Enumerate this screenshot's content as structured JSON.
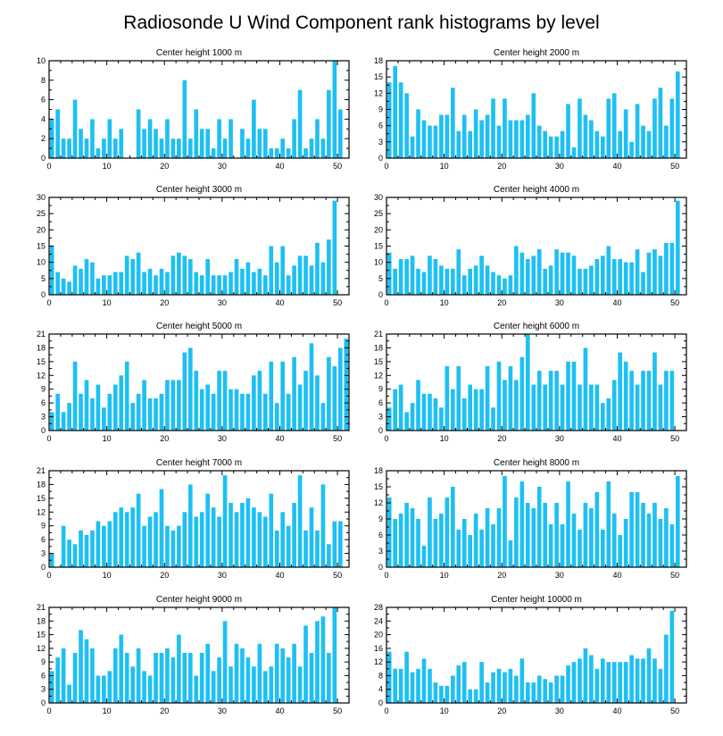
{
  "figure_title": "Radiosonde U Wind Component rank histograms by level",
  "colors": {
    "bar": "#1ec0f2",
    "axis": "#000000",
    "background": "#ffffff"
  },
  "chart_data": [
    {
      "type": "bar",
      "title": "Center height 1000 m",
      "xlim": [
        0,
        52
      ],
      "xticks": [
        0,
        10,
        20,
        30,
        40,
        50
      ],
      "ylim": [
        0,
        10
      ],
      "yticks": [
        0,
        2,
        4,
        6,
        8,
        10
      ],
      "values": [
        4,
        5,
        2,
        2,
        6,
        3,
        2,
        4,
        1,
        2,
        4,
        2,
        3,
        0,
        0,
        5,
        3,
        4,
        3,
        2,
        4,
        2,
        2,
        8,
        2,
        5,
        3,
        3,
        1,
        4,
        2,
        4,
        0,
        3,
        2,
        6,
        3,
        3,
        1,
        1,
        2,
        1,
        4,
        7,
        1,
        2,
        4,
        2,
        7,
        10,
        5
      ]
    },
    {
      "type": "bar",
      "title": "Center height 2000 m",
      "xlim": [
        0,
        52
      ],
      "xticks": [
        0,
        10,
        20,
        30,
        40,
        50
      ],
      "ylim": [
        0,
        18
      ],
      "yticks": [
        0,
        3,
        6,
        9,
        12,
        15,
        18
      ],
      "values": [
        14,
        17,
        14,
        12,
        4,
        9,
        7,
        6,
        6,
        8,
        8,
        13,
        5,
        8,
        5,
        9,
        7,
        8,
        11,
        6,
        11,
        7,
        7,
        7,
        8,
        12,
        6,
        5,
        4,
        4,
        5,
        10,
        2,
        11,
        8,
        7,
        5,
        4,
        11,
        12,
        5,
        9,
        3,
        10,
        6,
        5,
        11,
        13,
        6,
        11,
        16
      ]
    },
    {
      "type": "bar",
      "title": "Center height 3000 m",
      "xlim": [
        0,
        52
      ],
      "xticks": [
        0,
        10,
        20,
        30,
        40,
        50
      ],
      "ylim": [
        0,
        30
      ],
      "yticks": [
        0,
        5,
        10,
        15,
        20,
        25,
        30
      ],
      "values": [
        15,
        7,
        5,
        4,
        9,
        8,
        11,
        10,
        5,
        6,
        6,
        7,
        7,
        12,
        11,
        13,
        7,
        8,
        6,
        8,
        7,
        12,
        13,
        12,
        11,
        7,
        6,
        11,
        6,
        6,
        6,
        7,
        11,
        8,
        10,
        7,
        8,
        6,
        15,
        10,
        15,
        6,
        9,
        12,
        12,
        9,
        16,
        10,
        17,
        29,
        0
      ]
    },
    {
      "type": "bar",
      "title": "Center height 4000 m",
      "xlim": [
        0,
        52
      ],
      "xticks": [
        0,
        10,
        20,
        30,
        40,
        50
      ],
      "ylim": [
        0,
        30
      ],
      "yticks": [
        0,
        5,
        10,
        15,
        20,
        25,
        30
      ],
      "values": [
        13,
        8,
        11,
        11,
        12,
        8,
        7,
        12,
        11,
        9,
        8,
        8,
        14,
        6,
        8,
        9,
        12,
        9,
        7,
        6,
        5,
        6,
        15,
        13,
        11,
        12,
        14,
        8,
        9,
        14,
        13,
        13,
        12,
        8,
        8,
        9,
        11,
        12,
        15,
        11,
        11,
        10,
        10,
        14,
        7,
        13,
        14,
        12,
        16,
        16,
        29
      ]
    },
    {
      "type": "bar",
      "title": "Center height 5000 m",
      "xlim": [
        0,
        52
      ],
      "xticks": [
        0,
        10,
        20,
        30,
        40,
        50
      ],
      "ylim": [
        0,
        21
      ],
      "yticks": [
        0,
        3,
        6,
        9,
        12,
        15,
        18,
        21
      ],
      "values": [
        4,
        8,
        4,
        6,
        15,
        8,
        11,
        7,
        10,
        5,
        8,
        10,
        12,
        15,
        6,
        8,
        11,
        7,
        7,
        8,
        11,
        11,
        11,
        17,
        18,
        13,
        9,
        10,
        8,
        13,
        13,
        9,
        9,
        8,
        8,
        12,
        13,
        8,
        15,
        6,
        15,
        8,
        16,
        10,
        13,
        19,
        12,
        6,
        16,
        14,
        18,
        20
      ]
    },
    {
      "type": "bar",
      "title": "Center height 6000 m",
      "xlim": [
        0,
        52
      ],
      "xticks": [
        0,
        10,
        20,
        30,
        40,
        50
      ],
      "ylim": [
        0,
        21
      ],
      "yticks": [
        0,
        3,
        6,
        9,
        12,
        15,
        18,
        21
      ],
      "values": [
        5,
        9,
        10,
        4,
        6,
        11,
        8,
        8,
        7,
        5,
        14,
        9,
        14,
        7,
        10,
        9,
        9,
        14,
        5,
        15,
        11,
        14,
        11,
        16,
        21,
        10,
        13,
        10,
        13,
        13,
        10,
        15,
        15,
        10,
        18,
        10,
        10,
        6,
        7,
        11,
        17,
        15,
        13,
        10,
        13,
        13,
        17,
        10,
        13,
        13,
        0
      ]
    },
    {
      "type": "bar",
      "title": "Center height 7000 m",
      "xlim": [
        0,
        52
      ],
      "xticks": [
        0,
        10,
        20,
        30,
        40,
        50
      ],
      "ylim": [
        0,
        21
      ],
      "yticks": [
        0,
        3,
        6,
        9,
        12,
        15,
        18,
        21
      ],
      "values": [
        3,
        0,
        9,
        6,
        5,
        8,
        7,
        8,
        10,
        9,
        10,
        12,
        13,
        12,
        13,
        16,
        9,
        11,
        12,
        17,
        9,
        8,
        9,
        12,
        18,
        11,
        12,
        16,
        13,
        11,
        20,
        14,
        12,
        14,
        15,
        13,
        12,
        11,
        16,
        8,
        12,
        9,
        14,
        20,
        8,
        13,
        8,
        18,
        5,
        10,
        10
      ]
    },
    {
      "type": "bar",
      "title": "Center height 8000 m",
      "xlim": [
        0,
        52
      ],
      "xticks": [
        0,
        10,
        20,
        30,
        40,
        50
      ],
      "ylim": [
        0,
        18
      ],
      "yticks": [
        0,
        3,
        6,
        9,
        12,
        15,
        18
      ],
      "values": [
        13,
        9,
        10,
        12,
        11,
        9,
        4,
        13,
        9,
        10,
        13,
        15,
        7,
        9,
        6,
        10,
        7,
        11,
        8,
        11,
        17,
        5,
        13,
        16,
        12,
        11,
        15,
        12,
        8,
        12,
        8,
        16,
        10,
        7,
        12,
        11,
        14,
        7,
        16,
        10,
        6,
        9,
        14,
        14,
        12,
        10,
        12,
        9,
        11,
        8,
        17
      ]
    },
    {
      "type": "bar",
      "title": "Center height 9000 m",
      "xlim": [
        0,
        52
      ],
      "xticks": [
        0,
        10,
        20,
        30,
        40,
        50
      ],
      "ylim": [
        0,
        21
      ],
      "yticks": [
        0,
        3,
        6,
        9,
        12,
        15,
        18,
        21
      ],
      "values": [
        7,
        10,
        12,
        4,
        11,
        16,
        14,
        12,
        6,
        6,
        7,
        12,
        15,
        11,
        8,
        12,
        7,
        6,
        11,
        11,
        12,
        10,
        15,
        11,
        11,
        6,
        11,
        13,
        7,
        10,
        18,
        8,
        13,
        12,
        10,
        8,
        13,
        7,
        8,
        13,
        12,
        10,
        13,
        8,
        17,
        11,
        18,
        19,
        11,
        21,
        0
      ]
    },
    {
      "type": "bar",
      "title": "Center height 10000 m",
      "xlim": [
        0,
        52
      ],
      "xticks": [
        0,
        10,
        20,
        30,
        40,
        50
      ],
      "ylim": [
        0,
        28
      ],
      "yticks": [
        0,
        4,
        8,
        12,
        16,
        20,
        24,
        28
      ],
      "values": [
        15,
        10,
        10,
        15,
        9,
        10,
        13,
        10,
        6,
        5,
        5,
        8,
        11,
        12,
        4,
        4,
        12,
        6,
        9,
        10,
        9,
        10,
        8,
        13,
        6,
        6,
        8,
        7,
        6,
        8,
        8,
        11,
        12,
        13,
        16,
        14,
        10,
        13,
        12,
        12,
        12,
        12,
        14,
        13,
        13,
        16,
        13,
        10,
        20,
        27,
        0
      ]
    }
  ]
}
